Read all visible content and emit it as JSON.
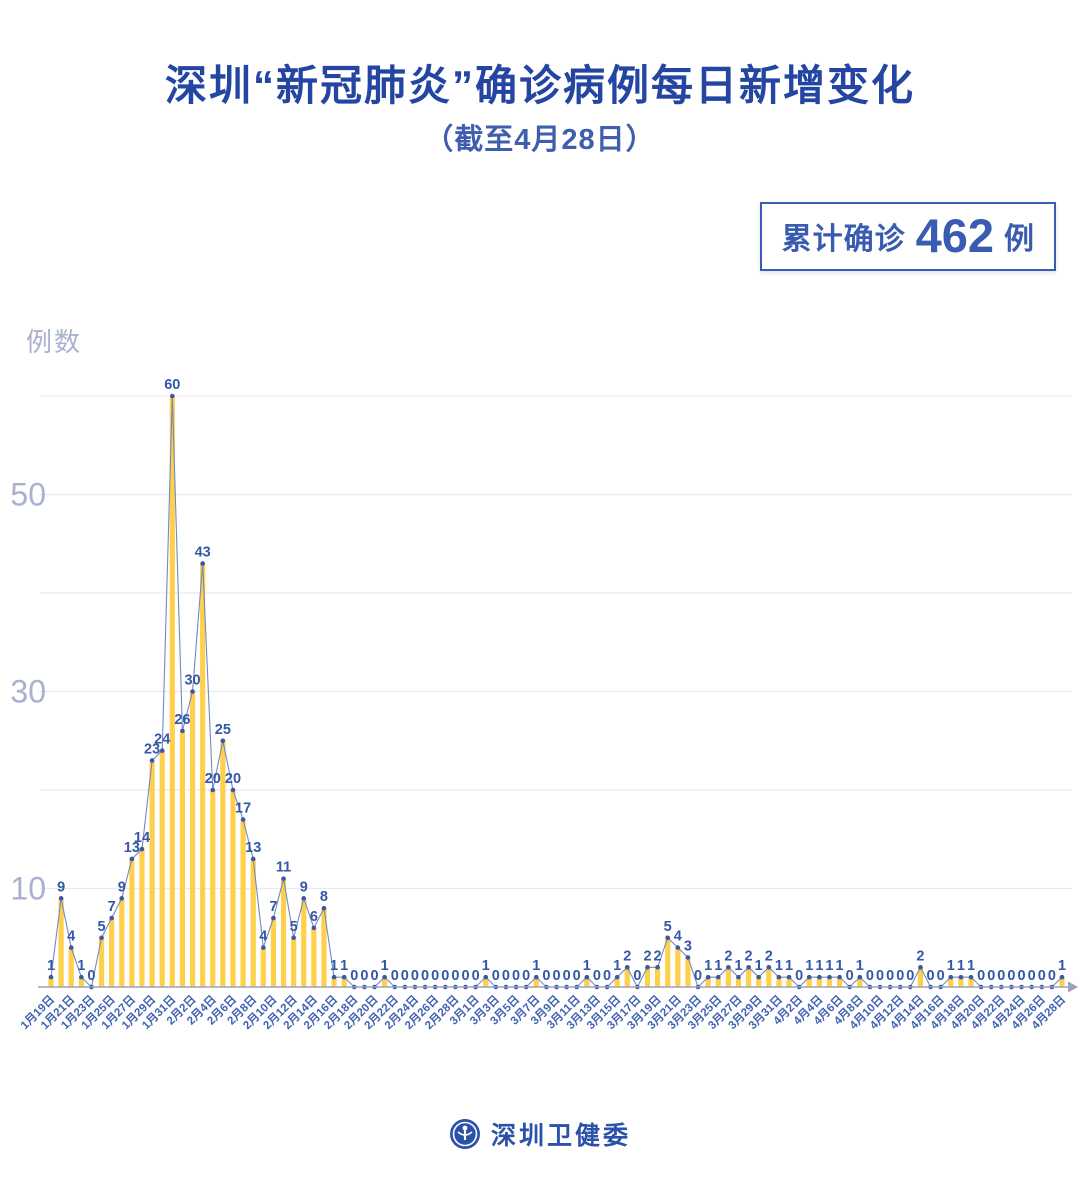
{
  "header": {
    "title": "深圳“新冠肺炎”确诊病例每日新增变化",
    "subtitle": "（截至4月28日）"
  },
  "badge": {
    "prefix": "累计确诊",
    "value": "462",
    "suffix": "例"
  },
  "chart_data": {
    "type": "bar",
    "title": "深圳“新冠肺炎”确诊病例每日新增变化",
    "ylabel": "例数",
    "xlabel": "",
    "ylim": [
      0,
      62
    ],
    "grid": true,
    "gridline_values": [
      10,
      20,
      30,
      40,
      50,
      60
    ],
    "ytick_labels": [
      50,
      30,
      10
    ],
    "tick_every": 2,
    "x_labels": [
      "1月19日",
      "1月21日",
      "1月23日",
      "1月25日",
      "1月27日",
      "1月29日",
      "1月31日",
      "2月2日",
      "2月4日",
      "2月6日",
      "2月8日",
      "2月10日",
      "2月12日",
      "2月14日",
      "2月16日",
      "2月18日",
      "2月20日",
      "2月22日",
      "2月24日",
      "2月26日",
      "2月28日",
      "3月1日",
      "3月3日",
      "3月5日",
      "3月7日",
      "3月9日",
      "3月11日",
      "3月13日",
      "3月15日",
      "3月17日",
      "3月19日",
      "3月21日",
      "3月23日",
      "3月25日",
      "3月27日",
      "3月29日",
      "3月31日",
      "4月2日",
      "4月4日",
      "4月6日",
      "4月8日",
      "4月10日",
      "4月12日",
      "4月14日",
      "4月16日",
      "4月18日",
      "4月20日",
      "4月22日",
      "4月24日",
      "4月26日",
      "4月28日"
    ],
    "values": [
      1,
      9,
      4,
      1,
      0,
      5,
      7,
      9,
      13,
      14,
      23,
      24,
      60,
      26,
      30,
      43,
      20,
      25,
      20,
      17,
      13,
      4,
      7,
      11,
      5,
      9,
      6,
      8,
      1,
      1,
      0,
      0,
      0,
      1,
      0,
      0,
      0,
      0,
      0,
      0,
      0,
      0,
      0,
      1,
      0,
      0,
      0,
      0,
      1,
      0,
      0,
      0,
      0,
      1,
      0,
      0,
      1,
      2,
      0,
      2,
      2,
      5,
      4,
      3,
      0,
      1,
      1,
      2,
      1,
      2,
      1,
      2,
      1,
      1,
      0,
      1,
      1,
      1,
      1,
      0,
      1,
      0,
      0,
      0,
      0,
      0,
      2,
      0,
      0,
      1,
      1,
      1,
      0,
      0,
      0,
      0,
      0,
      0,
      0,
      0,
      1
    ],
    "colors": {
      "bar": "#FFD04A",
      "line": "#7289C4",
      "dot": "#3A57A8",
      "value_label": "#3457A6",
      "x_label": "#4163B2",
      "y_label": "#A9B0D0",
      "gridline": "#E9EAF1",
      "axis": "#9AA3BD"
    }
  },
  "footer": {
    "brand": "深圳卫健委",
    "logo": "shenzhen-health-commission-emblem"
  }
}
